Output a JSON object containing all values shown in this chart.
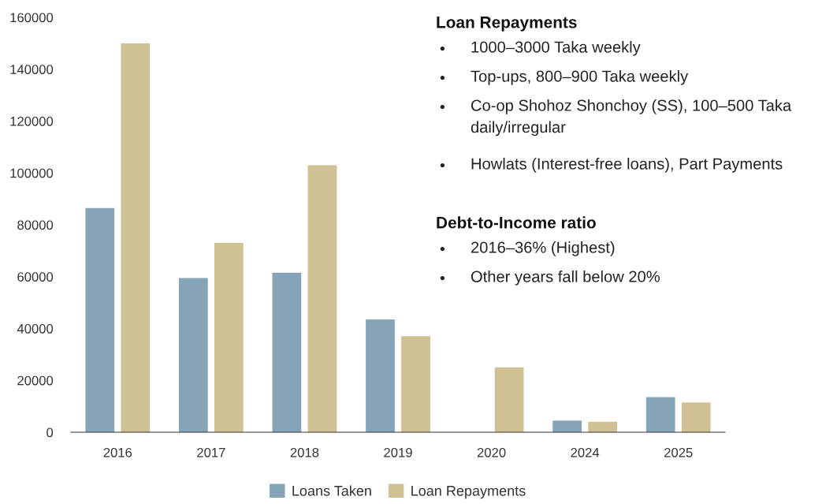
{
  "chart_data": {
    "type": "bar",
    "categories": [
      "2016",
      "2017",
      "2018",
      "2019",
      "2020",
      "2024",
      "2025"
    ],
    "series": [
      {
        "name": "Loans Taken",
        "color": "#86a4b7",
        "values": [
          86500,
          59500,
          61500,
          43500,
          0,
          4500,
          13500
        ]
      },
      {
        "name": "Loan Repayments",
        "color": "#d0c194",
        "values": [
          150000,
          73000,
          103000,
          37000,
          25000,
          4000,
          11500
        ]
      }
    ],
    "ylim": [
      0,
      160000
    ],
    "yticks": [
      0,
      20000,
      40000,
      60000,
      80000,
      100000,
      120000,
      140000,
      160000
    ],
    "grid": false,
    "legend": "bottom",
    "annotations": [
      "Loan Repayments",
      "•  1000–3000 Taka weekly",
      "•  Top-ups, 800–900 Taka weekly",
      "•  Co-op Shohoz Shonchoy (SS), 100–500 Taka\ndaily/irregular",
      "•  Howlats (Interest-free loans), Part Payments",
      "Debt-to-Income ratio",
      "•  2016–36% (Highest)",
      "•  Other years fall below 20%"
    ]
  }
}
